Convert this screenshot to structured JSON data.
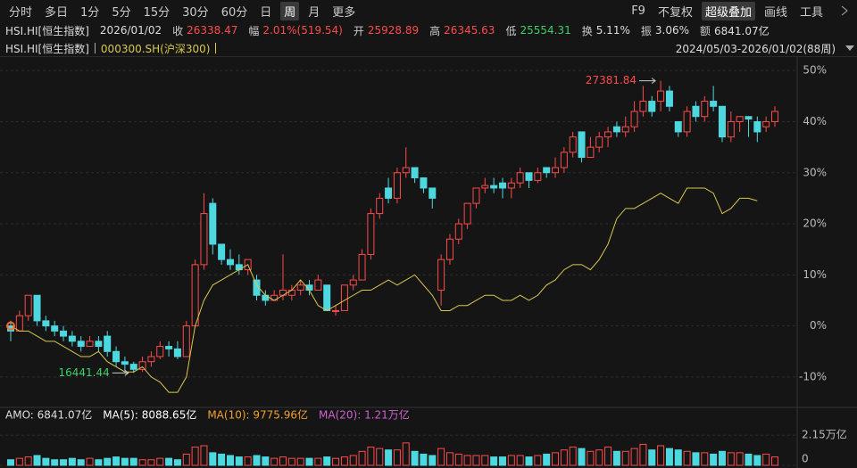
{
  "toolbar": {
    "periods": [
      "分时",
      "多日",
      "1分",
      "5分",
      "15分",
      "30分",
      "60分",
      "日",
      "周",
      "月",
      "更多"
    ],
    "selected_index": 8,
    "tools": [
      "F9",
      "不复权",
      "超级叠加",
      "画线",
      "工具"
    ],
    "highlighted_tool_index": 2
  },
  "info_bar": {
    "symbol": "HSI.HI[恒生指数]",
    "date": "2026/01/02",
    "fields": [
      {
        "label": "收",
        "value": "26338.47",
        "color": "#ff4a4a"
      },
      {
        "label": "幅",
        "value": "2.01%(519.54)",
        "color": "#ff4a4a"
      },
      {
        "label": "开",
        "value": "25928.89",
        "color": "#ff4a4a"
      },
      {
        "label": "高",
        "value": "26345.63",
        "color": "#ff4a4a"
      },
      {
        "label": "低",
        "value": "25554.31",
        "color": "#3ecf6a"
      },
      {
        "label": "换",
        "value": "5.11%",
        "color": "#dddddd"
      },
      {
        "label": "振",
        "value": "3.06%",
        "color": "#dddddd"
      },
      {
        "label": "额",
        "value": "6841.07亿",
        "color": "#dddddd"
      }
    ]
  },
  "legend_bar": {
    "range": "2024/05/03-2026/01/02(88周)"
  },
  "chart_data": [
    {
      "type": "candlestick",
      "name": "HSI.HI[恒生指数]",
      "up_color": "#ff4a4a",
      "down_color": "#4dd8e0",
      "candles": [
        [
          0,
          1,
          -3,
          -1
        ],
        [
          -1,
          3,
          -1,
          2
        ],
        [
          2,
          6,
          1,
          6
        ],
        [
          6,
          6,
          0,
          1
        ],
        [
          1,
          2,
          -1,
          0
        ],
        [
          0,
          1,
          -2,
          -1
        ],
        [
          -1,
          0,
          -3,
          -2
        ],
        [
          -2,
          -1,
          -4,
          -3
        ],
        [
          -3,
          -2,
          -5,
          -4
        ],
        [
          -4,
          -2,
          -4,
          -3
        ],
        [
          -3,
          -2,
          -5,
          -4
        ],
        [
          -2,
          -1,
          -6,
          -5
        ],
        [
          -5,
          -4,
          -8,
          -7
        ],
        [
          -7,
          -6,
          -9,
          -7.5
        ],
        [
          -7.5,
          -7,
          -9.2,
          -8.5
        ],
        [
          -8.5,
          -6,
          -9,
          -7
        ],
        [
          -7,
          -5,
          -8,
          -6
        ],
        [
          -6,
          -3,
          -6.5,
          -4
        ],
        [
          -4,
          -3,
          -6,
          -4.5
        ],
        [
          -4.5,
          -3,
          -6.5,
          -6
        ],
        [
          -6,
          1,
          -6,
          0
        ],
        [
          0,
          13,
          0,
          12
        ],
        [
          12,
          26,
          11,
          22
        ],
        [
          24,
          25,
          14,
          16
        ],
        [
          16,
          16,
          12,
          13
        ],
        [
          13,
          15,
          11,
          12
        ],
        [
          12,
          14,
          10,
          11
        ],
        [
          11,
          13,
          10,
          13
        ],
        [
          9,
          10,
          5,
          6
        ],
        [
          6,
          7,
          4,
          5
        ],
        [
          5,
          7,
          5,
          6
        ],
        [
          6,
          14,
          5,
          7
        ],
        [
          6,
          8,
          5,
          7
        ],
        [
          7,
          9,
          6,
          8
        ],
        [
          8,
          9,
          6,
          7
        ],
        [
          7,
          10,
          7,
          9
        ],
        [
          8,
          8,
          3,
          3
        ],
        [
          3,
          4,
          2,
          3
        ],
        [
          3,
          8,
          3,
          8
        ],
        [
          8,
          10,
          7,
          9
        ],
        [
          9,
          15,
          9,
          14
        ],
        [
          14,
          23,
          13,
          22
        ],
        [
          22,
          26,
          21,
          25
        ],
        [
          27,
          29,
          24,
          25
        ],
        [
          25,
          31,
          24,
          30
        ],
        [
          30,
          35,
          29,
          31
        ],
        [
          31,
          31,
          28,
          29
        ],
        [
          29,
          29,
          26,
          27
        ],
        [
          27,
          27,
          23,
          25
        ],
        [
          7,
          14,
          4,
          13
        ],
        [
          13,
          18,
          12,
          17
        ],
        [
          17,
          21,
          16,
          20
        ],
        [
          20,
          24,
          19,
          24
        ],
        [
          24,
          27,
          23,
          27
        ],
        [
          27,
          29,
          26,
          27.5
        ],
        [
          27.5,
          29,
          26,
          27
        ],
        [
          28,
          29,
          25,
          27
        ],
        [
          27,
          29,
          25,
          28
        ],
        [
          28,
          31,
          27,
          30
        ],
        [
          30,
          30,
          27,
          28.5
        ],
        [
          28.5,
          31,
          28,
          30
        ],
        [
          31,
          31,
          29,
          30
        ],
        [
          30,
          33,
          29,
          31
        ],
        [
          31,
          35,
          30,
          34
        ],
        [
          34,
          38,
          33,
          37
        ],
        [
          38,
          38,
          32,
          33
        ],
        [
          33,
          37,
          33,
          35
        ],
        [
          35,
          38,
          34,
          37
        ],
        [
          37,
          39,
          35,
          38
        ],
        [
          39,
          40,
          37,
          38
        ],
        [
          38,
          41,
          37,
          39
        ],
        [
          39,
          44,
          38,
          42
        ],
        [
          42,
          47,
          41,
          44
        ],
        [
          44,
          45,
          41,
          42
        ],
        [
          44,
          48,
          42,
          46
        ],
        [
          46,
          47,
          42,
          43
        ],
        [
          40,
          40,
          37,
          38
        ],
        [
          38,
          43,
          37,
          42
        ],
        [
          43,
          44,
          40,
          41
        ],
        [
          41,
          45,
          40,
          44
        ],
        [
          44,
          47,
          42,
          43
        ],
        [
          43,
          43,
          36,
          37
        ],
        [
          37,
          42,
          36,
          40
        ],
        [
          40,
          41,
          38,
          41
        ],
        [
          41,
          41,
          37,
          40.5
        ],
        [
          40,
          41,
          36,
          38
        ],
        [
          39,
          41,
          38,
          40
        ],
        [
          40,
          43,
          39,
          42
        ]
      ],
      "series": [
        {
          "name": "000300.SH(沪深300)",
          "color": "#d8c850",
          "values": [
            0,
            -1,
            -1,
            -2,
            -3,
            -3,
            -4,
            -5,
            -6,
            -6,
            -5,
            -7,
            -8,
            -9,
            -9,
            -8,
            -10,
            -11,
            -13,
            -13,
            -10,
            0,
            5,
            8,
            9,
            10,
            11,
            12,
            8,
            6,
            5,
            6,
            7,
            9,
            7,
            4,
            3,
            4,
            5,
            6,
            7,
            7,
            8,
            9,
            8,
            9,
            10,
            8,
            6,
            3,
            3,
            4,
            4,
            5,
            6,
            6,
            5,
            5,
            6,
            5,
            6,
            8,
            9,
            11,
            12,
            12,
            11,
            13,
            16,
            21,
            23,
            23,
            24,
            25,
            26,
            25,
            24,
            27,
            27,
            27,
            26,
            22,
            23,
            25,
            25,
            24.5,
            null,
            null
          ]
        }
      ],
      "ylim": [
        -15.6,
        52.3
      ],
      "yticks": [
        {
          "value": 50,
          "label": "50%"
        },
        {
          "value": 40,
          "label": "40%"
        },
        {
          "value": 30,
          "label": "30%"
        },
        {
          "value": 20,
          "label": "20%"
        },
        {
          "value": 10,
          "label": "10%"
        },
        {
          "value": 0,
          "label": "0%"
        },
        {
          "value": -10,
          "label": "-10%"
        }
      ],
      "grid": true,
      "annotations": {
        "high_label": "27381.84",
        "low_label": "16441.44"
      }
    },
    {
      "type": "bar",
      "legend": [
        {
          "text": "AMO: 6841.07亿",
          "color": "#dddddd"
        },
        {
          "text": "MA(5): 8088.65亿",
          "color": "#ffffff"
        },
        {
          "text": "MA(10): 9775.96亿",
          "color": "#f0a030"
        },
        {
          "text": "MA(20): 1.21万亿",
          "color": "#d060d0"
        }
      ],
      "values": [
        0.4,
        0.5,
        0.6,
        0.7,
        0.5,
        0.4,
        0.4,
        0.5,
        0.4,
        0.5,
        0.4,
        0.5,
        0.6,
        0.5,
        0.5,
        0.4,
        0.4,
        0.5,
        0.5,
        0.4,
        0.8,
        1.3,
        1.4,
        0.9,
        0.8,
        0.7,
        0.6,
        0.6,
        0.7,
        0.6,
        0.5,
        0.6,
        0.5,
        0.5,
        0.5,
        0.5,
        0.6,
        0.5,
        0.6,
        0.7,
        1.0,
        1.3,
        1.2,
        1.1,
        1.1,
        1.6,
        1.0,
        0.8,
        0.7,
        1.2,
        0.9,
        0.8,
        0.7,
        0.7,
        0.7,
        0.6,
        0.6,
        0.7,
        0.7,
        0.6,
        0.7,
        0.8,
        0.9,
        1.1,
        1.3,
        1.2,
        1.0,
        1.1,
        1.3,
        1.0,
        1.0,
        1.2,
        1.5,
        1.1,
        1.4,
        1.2,
        1.1,
        1.0,
        0.9,
        0.9,
        0.8,
        1.0,
        0.9,
        0.9,
        0.8,
        0.7,
        0.8,
        0.6
      ],
      "ylim": [
        0,
        2.8
      ],
      "yticks": [
        {
          "value": 2.15,
          "label": "2.15万亿"
        },
        0
      ]
    }
  ]
}
